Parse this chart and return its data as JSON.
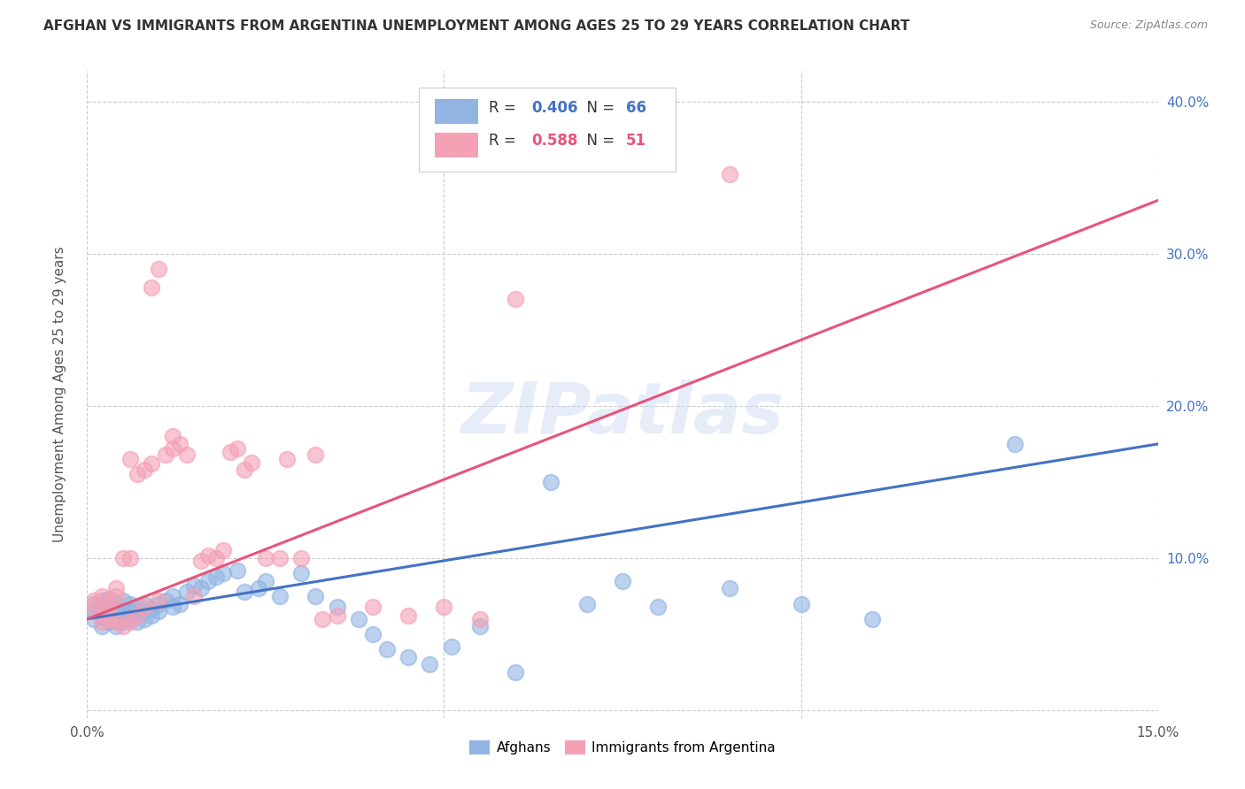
{
  "title": "AFGHAN VS IMMIGRANTS FROM ARGENTINA UNEMPLOYMENT AMONG AGES 25 TO 29 YEARS CORRELATION CHART",
  "source": "Source: ZipAtlas.com",
  "ylabel": "Unemployment Among Ages 25 to 29 years",
  "xlim": [
    0,
    0.15
  ],
  "ylim": [
    -0.005,
    0.42
  ],
  "xticks": [
    0.0,
    0.05,
    0.1,
    0.15
  ],
  "xticklabels": [
    "0.0%",
    "",
    "",
    "15.0%"
  ],
  "yticks": [
    0.0,
    0.1,
    0.2,
    0.3,
    0.4
  ],
  "yticklabels": [
    "",
    "10.0%",
    "20.0%",
    "30.0%",
    "40.0%"
  ],
  "afghans_R": 0.406,
  "afghans_N": 66,
  "argentina_R": 0.588,
  "argentina_N": 51,
  "afghans_color": "#92b4e3",
  "argentina_color": "#f4a0b5",
  "afghans_line_color": "#4472c4",
  "argentina_line_color": "#e8547a",
  "legend_label_afghans": "Afghans",
  "legend_label_argentina": "Immigrants from Argentina",
  "watermark": "ZIPatlas",
  "background_color": "#ffffff",
  "grid_color": "#cccccc",
  "afghans_x": [
    0.001,
    0.001,
    0.001,
    0.002,
    0.002,
    0.002,
    0.002,
    0.003,
    0.003,
    0.003,
    0.003,
    0.004,
    0.004,
    0.004,
    0.004,
    0.005,
    0.005,
    0.005,
    0.005,
    0.006,
    0.006,
    0.006,
    0.007,
    0.007,
    0.007,
    0.008,
    0.008,
    0.008,
    0.009,
    0.009,
    0.01,
    0.01,
    0.011,
    0.012,
    0.012,
    0.013,
    0.014,
    0.015,
    0.016,
    0.017,
    0.018,
    0.019,
    0.021,
    0.022,
    0.024,
    0.025,
    0.027,
    0.03,
    0.032,
    0.035,
    0.038,
    0.04,
    0.042,
    0.045,
    0.048,
    0.051,
    0.055,
    0.06,
    0.065,
    0.07,
    0.075,
    0.08,
    0.09,
    0.1,
    0.11,
    0.13
  ],
  "afghans_y": [
    0.06,
    0.065,
    0.07,
    0.055,
    0.062,
    0.068,
    0.072,
    0.058,
    0.063,
    0.068,
    0.073,
    0.055,
    0.06,
    0.065,
    0.07,
    0.058,
    0.062,
    0.066,
    0.072,
    0.06,
    0.065,
    0.07,
    0.058,
    0.062,
    0.068,
    0.06,
    0.065,
    0.07,
    0.062,
    0.067,
    0.065,
    0.07,
    0.072,
    0.068,
    0.075,
    0.07,
    0.078,
    0.082,
    0.08,
    0.085,
    0.088,
    0.09,
    0.092,
    0.078,
    0.08,
    0.085,
    0.075,
    0.09,
    0.075,
    0.068,
    0.06,
    0.05,
    0.04,
    0.035,
    0.03,
    0.042,
    0.055,
    0.025,
    0.15,
    0.07,
    0.085,
    0.068,
    0.08,
    0.07,
    0.06,
    0.175
  ],
  "argentina_x": [
    0.001,
    0.001,
    0.002,
    0.002,
    0.002,
    0.003,
    0.003,
    0.003,
    0.004,
    0.004,
    0.004,
    0.005,
    0.005,
    0.006,
    0.006,
    0.006,
    0.007,
    0.007,
    0.008,
    0.008,
    0.009,
    0.009,
    0.01,
    0.01,
    0.011,
    0.012,
    0.012,
    0.013,
    0.014,
    0.015,
    0.016,
    0.017,
    0.018,
    0.019,
    0.02,
    0.021,
    0.022,
    0.023,
    0.025,
    0.027,
    0.028,
    0.03,
    0.032,
    0.033,
    0.035,
    0.04,
    0.045,
    0.05,
    0.055,
    0.06,
    0.09
  ],
  "argentina_y": [
    0.068,
    0.072,
    0.058,
    0.062,
    0.075,
    0.06,
    0.068,
    0.072,
    0.058,
    0.075,
    0.08,
    0.055,
    0.1,
    0.058,
    0.1,
    0.165,
    0.062,
    0.155,
    0.068,
    0.158,
    0.162,
    0.278,
    0.072,
    0.29,
    0.168,
    0.172,
    0.18,
    0.175,
    0.168,
    0.075,
    0.098,
    0.102,
    0.1,
    0.105,
    0.17,
    0.172,
    0.158,
    0.163,
    0.1,
    0.1,
    0.165,
    0.1,
    0.168,
    0.06,
    0.062,
    0.068,
    0.062,
    0.068,
    0.06,
    0.27,
    0.352
  ],
  "afghans_trend": [
    0.06,
    0.175
  ],
  "argentina_trend": [
    0.06,
    0.335
  ]
}
